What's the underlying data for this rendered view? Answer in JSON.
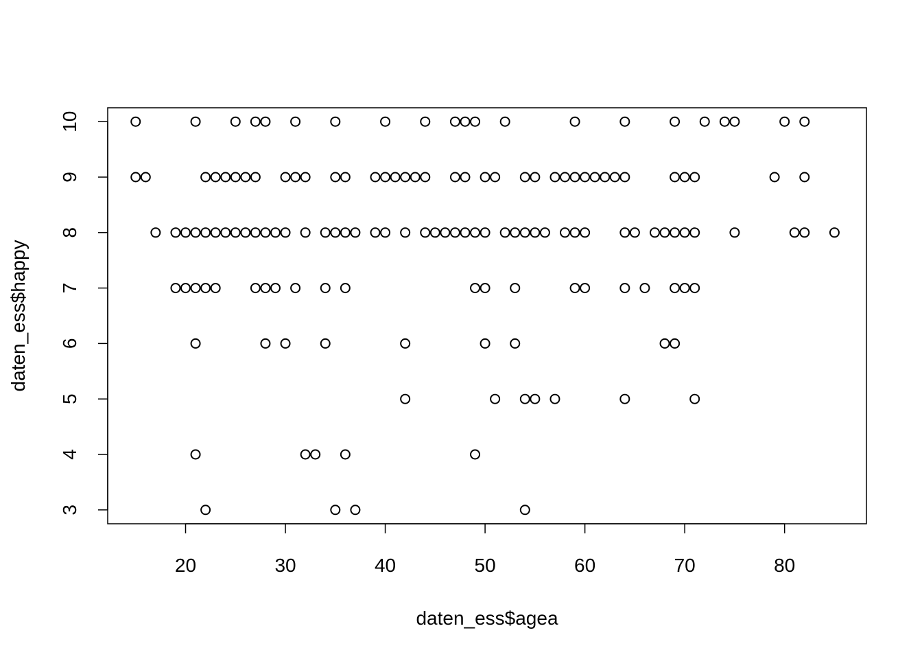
{
  "chart_data": {
    "type": "scatter",
    "title": "",
    "xlabel": "daten_ess$agea",
    "ylabel": "daten_ess$happy",
    "xlim": [
      12.2,
      88.2
    ],
    "ylim": [
      2.75,
      10.25
    ],
    "x_ticks": [
      20,
      30,
      40,
      50,
      60,
      70,
      80
    ],
    "y_ticks": [
      3,
      4,
      5,
      6,
      7,
      8,
      9,
      10
    ],
    "grid": false,
    "legend": "none",
    "point_style": "open-circle",
    "points": [
      [
        15,
        10
      ],
      [
        21,
        10
      ],
      [
        25,
        10
      ],
      [
        27,
        10
      ],
      [
        28,
        10
      ],
      [
        31,
        10
      ],
      [
        35,
        10
      ],
      [
        40,
        10
      ],
      [
        44,
        10
      ],
      [
        47,
        10
      ],
      [
        48,
        10
      ],
      [
        49,
        10
      ],
      [
        52,
        10
      ],
      [
        59,
        10
      ],
      [
        64,
        10
      ],
      [
        69,
        10
      ],
      [
        72,
        10
      ],
      [
        74,
        10
      ],
      [
        75,
        10
      ],
      [
        80,
        10
      ],
      [
        82,
        10
      ],
      [
        15,
        9
      ],
      [
        16,
        9
      ],
      [
        22,
        9
      ],
      [
        23,
        9
      ],
      [
        24,
        9
      ],
      [
        25,
        9
      ],
      [
        26,
        9
      ],
      [
        27,
        9
      ],
      [
        30,
        9
      ],
      [
        31,
        9
      ],
      [
        32,
        9
      ],
      [
        35,
        9
      ],
      [
        36,
        9
      ],
      [
        39,
        9
      ],
      [
        40,
        9
      ],
      [
        41,
        9
      ],
      [
        42,
        9
      ],
      [
        43,
        9
      ],
      [
        44,
        9
      ],
      [
        47,
        9
      ],
      [
        48,
        9
      ],
      [
        50,
        9
      ],
      [
        51,
        9
      ],
      [
        54,
        9
      ],
      [
        55,
        9
      ],
      [
        57,
        9
      ],
      [
        58,
        9
      ],
      [
        59,
        9
      ],
      [
        60,
        9
      ],
      [
        61,
        9
      ],
      [
        62,
        9
      ],
      [
        63,
        9
      ],
      [
        64,
        9
      ],
      [
        69,
        9
      ],
      [
        70,
        9
      ],
      [
        71,
        9
      ],
      [
        79,
        9
      ],
      [
        82,
        9
      ],
      [
        17,
        8
      ],
      [
        19,
        8
      ],
      [
        20,
        8
      ],
      [
        21,
        8
      ],
      [
        22,
        8
      ],
      [
        23,
        8
      ],
      [
        24,
        8
      ],
      [
        25,
        8
      ],
      [
        26,
        8
      ],
      [
        27,
        8
      ],
      [
        28,
        8
      ],
      [
        29,
        8
      ],
      [
        30,
        8
      ],
      [
        32,
        8
      ],
      [
        34,
        8
      ],
      [
        35,
        8
      ],
      [
        36,
        8
      ],
      [
        37,
        8
      ],
      [
        39,
        8
      ],
      [
        40,
        8
      ],
      [
        42,
        8
      ],
      [
        44,
        8
      ],
      [
        45,
        8
      ],
      [
        46,
        8
      ],
      [
        47,
        8
      ],
      [
        48,
        8
      ],
      [
        49,
        8
      ],
      [
        50,
        8
      ],
      [
        52,
        8
      ],
      [
        53,
        8
      ],
      [
        54,
        8
      ],
      [
        55,
        8
      ],
      [
        56,
        8
      ],
      [
        58,
        8
      ],
      [
        59,
        8
      ],
      [
        60,
        8
      ],
      [
        64,
        8
      ],
      [
        65,
        8
      ],
      [
        67,
        8
      ],
      [
        68,
        8
      ],
      [
        69,
        8
      ],
      [
        70,
        8
      ],
      [
        71,
        8
      ],
      [
        75,
        8
      ],
      [
        81,
        8
      ],
      [
        82,
        8
      ],
      [
        85,
        8
      ],
      [
        19,
        7
      ],
      [
        20,
        7
      ],
      [
        21,
        7
      ],
      [
        22,
        7
      ],
      [
        23,
        7
      ],
      [
        27,
        7
      ],
      [
        28,
        7
      ],
      [
        29,
        7
      ],
      [
        31,
        7
      ],
      [
        34,
        7
      ],
      [
        36,
        7
      ],
      [
        49,
        7
      ],
      [
        50,
        7
      ],
      [
        53,
        7
      ],
      [
        59,
        7
      ],
      [
        60,
        7
      ],
      [
        64,
        7
      ],
      [
        66,
        7
      ],
      [
        69,
        7
      ],
      [
        70,
        7
      ],
      [
        71,
        7
      ],
      [
        21,
        6
      ],
      [
        28,
        6
      ],
      [
        30,
        6
      ],
      [
        34,
        6
      ],
      [
        42,
        6
      ],
      [
        50,
        6
      ],
      [
        53,
        6
      ],
      [
        68,
        6
      ],
      [
        69,
        6
      ],
      [
        42,
        5
      ],
      [
        51,
        5
      ],
      [
        54,
        5
      ],
      [
        55,
        5
      ],
      [
        57,
        5
      ],
      [
        64,
        5
      ],
      [
        71,
        5
      ],
      [
        21,
        4
      ],
      [
        32,
        4
      ],
      [
        33,
        4
      ],
      [
        36,
        4
      ],
      [
        49,
        4
      ],
      [
        22,
        3
      ],
      [
        35,
        3
      ],
      [
        37,
        3
      ],
      [
        54,
        3
      ]
    ]
  }
}
